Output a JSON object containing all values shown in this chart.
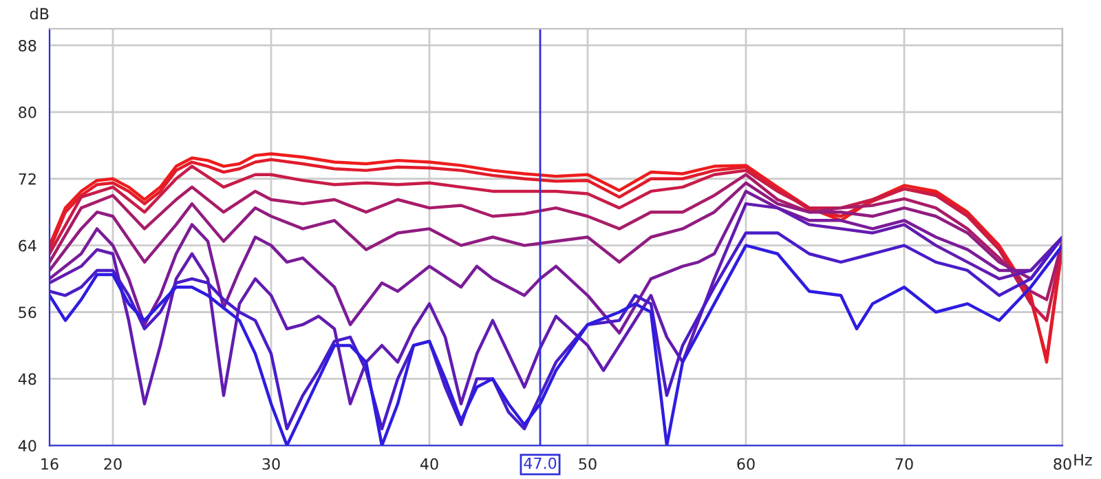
{
  "chart_data": {
    "type": "line",
    "xlabel": "Hz",
    "ylabel": "dB",
    "xlim": [
      16,
      80
    ],
    "ylim": [
      40,
      90
    ],
    "xticks": [
      16,
      20,
      30,
      40,
      50,
      60,
      70,
      80
    ],
    "yticks": [
      40,
      48,
      56,
      64,
      72,
      80,
      88
    ],
    "grid": true,
    "legend": false,
    "marker": "none",
    "line_style": "solid",
    "ref_lines": [
      {
        "axis": "x",
        "value": 47,
        "label": "47.0",
        "color": "#3030d8",
        "line_style": "solid"
      }
    ],
    "series": [
      {
        "color": "#ee1c1c",
        "x": [
          16,
          17,
          18,
          19,
          20,
          21,
          22,
          23,
          24,
          25,
          26,
          27,
          28,
          29,
          30,
          32,
          34,
          36,
          38,
          40,
          42,
          44,
          46,
          48,
          50,
          52,
          54,
          56,
          58,
          60,
          62,
          64,
          66,
          68,
          70,
          72,
          74,
          76,
          78,
          79,
          80
        ],
        "values": [
          64,
          68.5,
          70.5,
          71.8,
          72,
          71,
          69.5,
          71,
          73.5,
          74.5,
          74.2,
          73.5,
          73.8,
          74.8,
          75,
          74.6,
          74,
          73.8,
          74.2,
          74,
          73.6,
          73,
          72.6,
          72.3,
          72.5,
          70.6,
          72.8,
          72.6,
          73.5,
          73.6,
          71,
          68.5,
          67,
          69.5,
          71.2,
          70.5,
          68,
          64,
          58,
          50,
          64
        ]
      },
      {
        "color": "#e01c2c",
        "x": [
          16,
          17,
          18,
          19,
          20,
          21,
          22,
          23,
          24,
          25,
          26,
          27,
          28,
          29,
          30,
          32,
          34,
          36,
          38,
          40,
          42,
          44,
          46,
          48,
          50,
          52,
          54,
          56,
          58,
          60,
          62,
          64,
          66,
          68,
          70,
          72,
          74,
          76,
          78,
          79,
          80
        ],
        "values": [
          63.5,
          68,
          70,
          71.3,
          71.5,
          70.5,
          69,
          70.5,
          73,
          74,
          73.5,
          72.8,
          73.2,
          74,
          74.3,
          73.8,
          73.2,
          73,
          73.4,
          73.3,
          73,
          72.4,
          72,
          71.7,
          71.8,
          69.8,
          72,
          72,
          73,
          73.4,
          70.8,
          68.3,
          67.5,
          69.3,
          70.8,
          70.2,
          67.8,
          63.8,
          57.5,
          50.5,
          64
        ]
      },
      {
        "color": "#c81c48",
        "x": [
          16,
          18,
          20,
          22,
          24,
          25,
          27,
          29,
          30,
          32,
          34,
          36,
          38,
          40,
          42,
          44,
          46,
          48,
          50,
          52,
          54,
          56,
          58,
          60,
          62,
          64,
          66,
          68,
          70,
          72,
          74,
          76,
          78,
          79,
          80
        ],
        "values": [
          63,
          69.8,
          71,
          68,
          72,
          73.5,
          71,
          72.5,
          72.5,
          71.8,
          71.3,
          71.5,
          71.3,
          71.5,
          71,
          70.5,
          70.5,
          70.5,
          70.2,
          68.5,
          70.5,
          71,
          72.5,
          73,
          70.5,
          68.5,
          68.5,
          69.5,
          70.8,
          70,
          67.5,
          63.5,
          57,
          55,
          64
        ]
      },
      {
        "color": "#a81c68",
        "x": [
          16,
          18,
          20,
          22,
          24,
          25,
          27,
          29,
          30,
          32,
          34,
          36,
          38,
          40,
          42,
          44,
          46,
          48,
          50,
          52,
          54,
          56,
          58,
          60,
          62,
          64,
          66,
          68,
          70,
          72,
          74,
          76,
          78,
          79,
          80
        ],
        "values": [
          62,
          68.5,
          70,
          66,
          69.5,
          71,
          68,
          70.5,
          69.5,
          69,
          69.5,
          68,
          69.5,
          68.5,
          68.8,
          67.5,
          67.8,
          68.5,
          67.5,
          66,
          68,
          68,
          70,
          72.5,
          69.5,
          68,
          68.5,
          68.8,
          69.6,
          68.5,
          66,
          62.5,
          58.5,
          57.5,
          64.5
        ]
      },
      {
        "color": "#901c80",
        "x": [
          16,
          18,
          19,
          20,
          22,
          24,
          25,
          27,
          29,
          30,
          32,
          34,
          36,
          38,
          40,
          42,
          44,
          46,
          48,
          50,
          52,
          54,
          56,
          58,
          60,
          62,
          64,
          66,
          68,
          70,
          72,
          74,
          76,
          78,
          80
        ],
        "values": [
          61,
          66,
          68,
          67.5,
          62,
          66.5,
          69,
          64.5,
          68.5,
          67.5,
          66,
          67,
          63.5,
          65.5,
          66,
          64,
          65,
          64,
          64.5,
          65,
          62,
          65,
          66,
          68,
          71.5,
          69,
          68,
          68,
          67.5,
          68.5,
          67.5,
          65.5,
          62,
          60,
          65
        ]
      },
      {
        "color": "#7a1c98",
        "x": [
          16,
          18,
          19,
          20,
          21,
          22,
          23,
          24,
          25,
          26,
          27,
          28,
          29,
          30,
          31,
          32,
          34,
          35,
          36,
          37,
          38,
          40,
          42,
          43,
          44,
          46,
          47,
          48,
          50,
          52,
          54,
          56,
          57,
          58,
          60,
          62,
          64,
          66,
          68,
          70,
          72,
          74,
          76,
          78,
          80
        ],
        "values": [
          60,
          63,
          66,
          64,
          60,
          54.5,
          58,
          63,
          66.5,
          64.5,
          56.5,
          61,
          65,
          64,
          62,
          62.5,
          59,
          54.5,
          57,
          59.5,
          58.5,
          61.5,
          59,
          61.5,
          60,
          58,
          60,
          61.5,
          58,
          53.5,
          60,
          61.5,
          62,
          63,
          70.5,
          68.5,
          67,
          67,
          66,
          67,
          65,
          63.5,
          61,
          61,
          65
        ]
      },
      {
        "color": "#621cb0",
        "x": [
          16,
          18,
          19,
          20,
          21,
          22,
          23,
          24,
          25,
          26,
          27,
          28,
          29,
          30,
          31,
          32,
          33,
          34,
          35,
          36,
          37,
          38,
          39,
          40,
          41,
          42,
          43,
          44,
          45,
          46,
          47,
          48,
          50,
          51,
          52,
          54,
          55,
          56,
          57,
          58,
          60,
          62,
          64,
          66,
          68,
          70,
          72,
          74,
          76,
          78,
          80
        ],
        "values": [
          59.5,
          61.5,
          63.5,
          63,
          55,
          45,
          52,
          60,
          63,
          60,
          46,
          57,
          60,
          58,
          54,
          54.5,
          55.5,
          54,
          45,
          50,
          52,
          50,
          54,
          57,
          53,
          45,
          51,
          55,
          51,
          47,
          51.7,
          55.5,
          52,
          49,
          52,
          58,
          53,
          50,
          55,
          60,
          69,
          68.5,
          66.5,
          66,
          65.5,
          66.5,
          64,
          62,
          60,
          61,
          65
        ]
      },
      {
        "color": "#4a1cc8",
        "x": [
          16,
          17,
          18,
          19,
          20,
          21,
          22,
          23,
          24,
          25,
          26,
          27,
          28,
          29,
          30,
          31,
          32,
          33,
          34,
          35,
          36,
          37,
          38,
          39,
          40,
          41,
          42,
          43,
          44,
          45,
          46,
          48,
          50,
          52,
          53,
          54,
          55,
          56,
          58,
          60,
          62,
          64,
          66,
          68,
          70,
          72,
          74,
          76,
          78,
          80
        ],
        "values": [
          58.5,
          58,
          59,
          61,
          61,
          58,
          54,
          56,
          59.5,
          60,
          59.5,
          57.5,
          56,
          55,
          51,
          42,
          46,
          49,
          52.5,
          53,
          49,
          42,
          48,
          52,
          52.5,
          47,
          42.5,
          48,
          48,
          44,
          42,
          50,
          54.5,
          55,
          58,
          57,
          46,
          52,
          59,
          65.5,
          65.5,
          63,
          62,
          63,
          64,
          62,
          61,
          58,
          60,
          65
        ]
      },
      {
        "color": "#2e1ce0",
        "x": [
          16,
          17,
          18,
          19,
          20,
          21,
          22,
          23,
          24,
          25,
          26,
          27,
          28,
          29,
          30,
          31,
          33,
          34,
          35,
          36,
          37,
          38,
          39,
          40,
          41,
          42,
          43,
          44,
          45,
          46,
          47,
          48,
          50,
          52,
          53,
          54,
          55,
          56,
          58,
          60,
          62,
          64,
          66,
          67,
          68,
          70,
          72,
          74,
          76,
          78,
          80
        ],
        "values": [
          58,
          55,
          57.5,
          60.5,
          60.5,
          57,
          55,
          57,
          59,
          59,
          58,
          56.5,
          55,
          51,
          45,
          40,
          48,
          52,
          52,
          50,
          40,
          45,
          52,
          52.5,
          48,
          43,
          47,
          48,
          45,
          42.5,
          45,
          49,
          54.5,
          56,
          57,
          56,
          40,
          50,
          57,
          64,
          63,
          58.5,
          58,
          54,
          57,
          59,
          56,
          57,
          55,
          59,
          64
        ]
      }
    ]
  }
}
